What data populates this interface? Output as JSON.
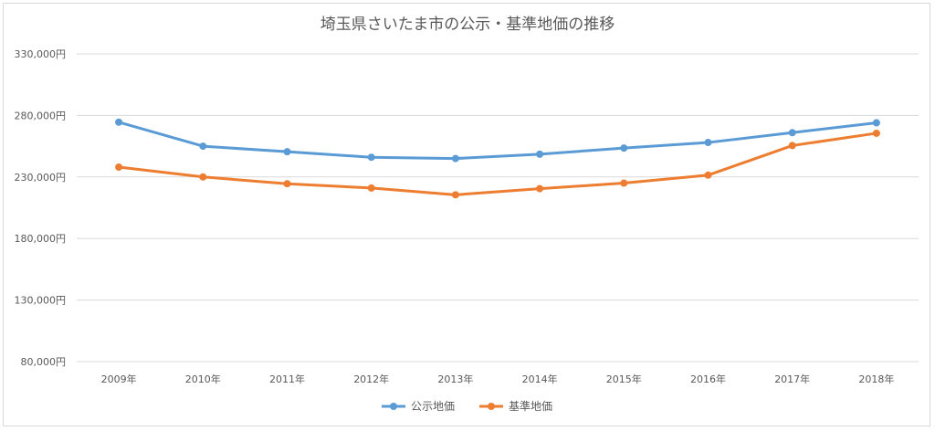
{
  "chart_data": {
    "type": "line",
    "title": "埼玉県さいたま市の公示・基準地価の推移",
    "xlabel": "",
    "ylabel": "",
    "categories": [
      "2009年",
      "2010年",
      "2011年",
      "2012年",
      "2013年",
      "2014年",
      "2015年",
      "2016年",
      "2017年",
      "2018年"
    ],
    "ylim": [
      80000,
      330000
    ],
    "yticks": [
      80000,
      130000,
      180000,
      230000,
      280000,
      330000
    ],
    "ytick_labels": [
      "80,000円",
      "130,000円",
      "180,000円",
      "230,000円",
      "280,000円",
      "330,000円"
    ],
    "grid": true,
    "legend_position": "bottom",
    "series": [
      {
        "name": "公示地価",
        "color": "#5b9bd5",
        "values": [
          274500,
          255000,
          250500,
          246000,
          245000,
          248500,
          253500,
          258000,
          266000,
          274000
        ]
      },
      {
        "name": "基準地価",
        "color": "#ed7d31",
        "values": [
          238000,
          230000,
          224500,
          221000,
          215500,
          220500,
          225000,
          231500,
          255500,
          265500
        ]
      }
    ]
  }
}
